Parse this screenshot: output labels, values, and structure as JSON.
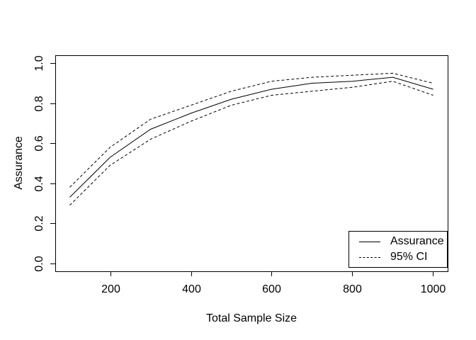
{
  "figure": {
    "background_color": "#ffffff",
    "line_color": "#000000",
    "text_color": "#000000"
  },
  "chart_data": {
    "type": "line",
    "title": "",
    "xlabel": "Total Sample Size",
    "ylabel": "Assurance",
    "x": [
      100,
      200,
      300,
      400,
      500,
      600,
      700,
      800,
      900,
      1000
    ],
    "series": [
      {
        "name": "Assurance",
        "style": "solid",
        "values": [
          0.33,
          0.53,
          0.67,
          0.75,
          0.82,
          0.87,
          0.9,
          0.91,
          0.93,
          0.87
        ]
      },
      {
        "name": "95% CI upper",
        "style": "dashed",
        "values": [
          0.38,
          0.58,
          0.72,
          0.79,
          0.86,
          0.91,
          0.93,
          0.94,
          0.95,
          0.9
        ]
      },
      {
        "name": "95% CI lower",
        "style": "dashed",
        "values": [
          0.29,
          0.49,
          0.62,
          0.71,
          0.79,
          0.84,
          0.86,
          0.88,
          0.91,
          0.84
        ]
      }
    ],
    "x_ticks": [
      "200",
      "400",
      "600",
      "800",
      "1000"
    ],
    "y_ticks": [
      "0.0",
      "0.2",
      "0.4",
      "0.6",
      "0.8",
      "1.0"
    ],
    "xlim": [
      64,
      1036
    ],
    "ylim": [
      -0.04,
      1.04
    ],
    "grid": false,
    "legend": {
      "position": "bottomright",
      "entries": [
        {
          "label": "Assurance",
          "line": "solid"
        },
        {
          "label": "95% CI",
          "line": "dashed"
        }
      ]
    }
  }
}
